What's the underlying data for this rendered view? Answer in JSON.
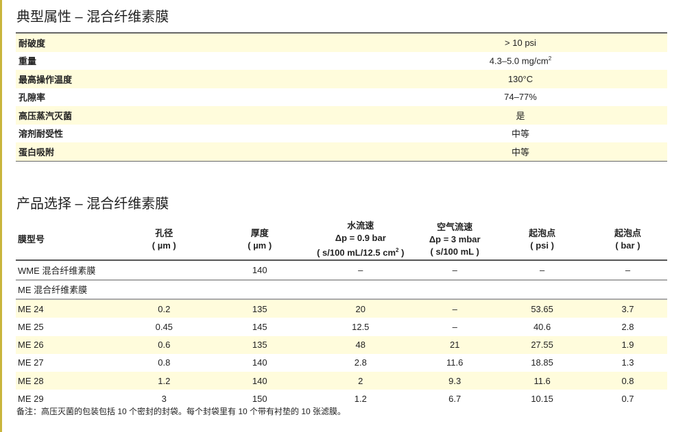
{
  "colors": {
    "accent_bar": "#c9b53c",
    "row_highlight": "#fffcdc"
  },
  "properties": {
    "title": "典型属性 – 混合纤维素膜",
    "rows": [
      {
        "label": "耐破度",
        "value": "> 10 psi"
      },
      {
        "label": "重量",
        "value": "4.3–5.0 mg/cm",
        "sup": "2"
      },
      {
        "label": "最高操作温度",
        "value": "130°C"
      },
      {
        "label": "孔隙率",
        "value": "74–77%"
      },
      {
        "label": "高压蒸汽灭菌",
        "value": "是"
      },
      {
        "label": "溶剂耐受性",
        "value": "中等"
      },
      {
        "label": "蛋白吸附",
        "value": "中等"
      }
    ]
  },
  "selection": {
    "title": "产品选择 – 混合纤维素膜",
    "headers": [
      {
        "l1": "膜型号"
      },
      {
        "l1": "孔径",
        "l2": "( µm )"
      },
      {
        "l1": "厚度",
        "l2": "( µm )"
      },
      {
        "l1": "水流速",
        "l2": "Δp = 0.9 bar",
        "l3": "( s/100 mL/12.5 cm",
        "sup": "2",
        "l3end": " )"
      },
      {
        "l1": "空气流速",
        "l2": "Δp = 3 mbar",
        "l3": "( s/100 mL )"
      },
      {
        "l1": "起泡点",
        "l2": "( psi )"
      },
      {
        "l1": "起泡点",
        "l2": "( bar )"
      }
    ],
    "rows": [
      [
        "WME 混合纤维素膜",
        "",
        "140",
        "–",
        "–",
        "–",
        "–"
      ],
      [
        "ME 混合纤维素膜",
        "",
        "",
        "",
        "",
        "",
        ""
      ],
      [
        "ME 24",
        "0.2",
        "135",
        "20",
        "–",
        "53.65",
        "3.7"
      ],
      [
        "ME 25",
        "0.45",
        "145",
        "12.5",
        "–",
        "40.6",
        "2.8"
      ],
      [
        "ME 26",
        "0.6",
        "135",
        "48",
        "21",
        "27.55",
        "1.9"
      ],
      [
        "ME 27",
        "0.8",
        "140",
        "2.8",
        "11.6",
        "18.85",
        "1.3"
      ],
      [
        "ME 28",
        "1.2",
        "140",
        "2",
        "9.3",
        "11.6",
        "0.8"
      ],
      [
        "ME 29",
        "3",
        "150",
        "1.2",
        "6.7",
        "10.15",
        "0.7"
      ]
    ],
    "footnote": "备注：高压灭菌的包装包括 10 个密封的封袋。每个封袋里有 10 个带有衬垫的 10 张滤膜。"
  }
}
